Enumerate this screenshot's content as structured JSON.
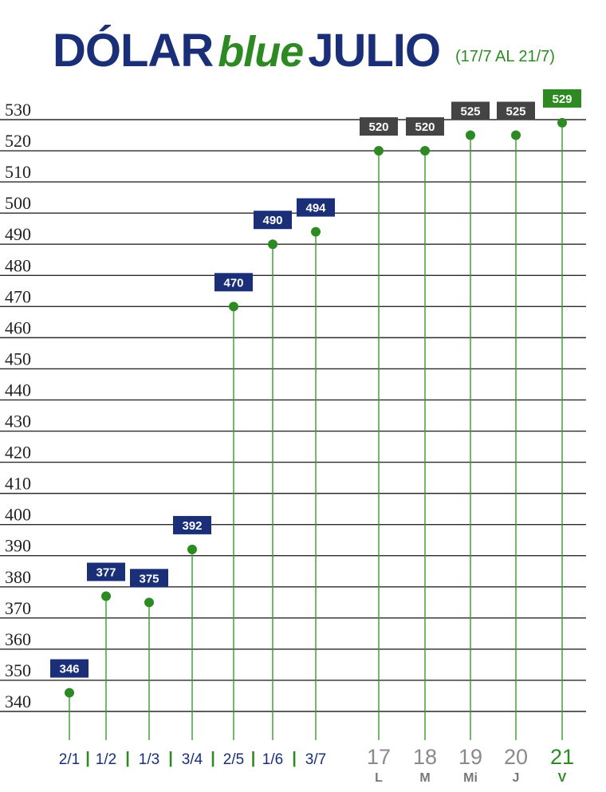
{
  "title": {
    "part1": "DÓLAR",
    "part2": "blue",
    "part3": "JULIO"
  },
  "subtitle": "(17/7 AL 21/7)",
  "chart_data": {
    "type": "line",
    "ylim": [
      340,
      530
    ],
    "yticks": [
      530,
      520,
      510,
      500,
      490,
      480,
      470,
      460,
      450,
      440,
      430,
      420,
      410,
      400,
      390,
      380,
      370,
      360,
      350,
      340
    ],
    "grid": true,
    "points": [
      {
        "x": "2/1",
        "value": 346,
        "label": "346",
        "style": "blue"
      },
      {
        "x": "1/2",
        "value": 377,
        "label": "377",
        "style": "blue"
      },
      {
        "x": "1/3",
        "value": 375,
        "label": "375",
        "style": "blue"
      },
      {
        "x": "3/4",
        "value": 392,
        "label": "392",
        "style": "blue"
      },
      {
        "x": "2/5",
        "value": 470,
        "label": "470",
        "style": "blue"
      },
      {
        "x": "1/6",
        "value": 490,
        "label": "490",
        "style": "blue"
      },
      {
        "x": "3/7",
        "value": 494,
        "label": "494",
        "style": "blue"
      },
      {
        "x": "17",
        "weekday": "L",
        "value": 520,
        "label": "520",
        "style": "gray"
      },
      {
        "x": "18",
        "weekday": "M",
        "value": 520,
        "label": "520",
        "style": "gray"
      },
      {
        "x": "19",
        "weekday": "Mi",
        "value": 525,
        "label": "525",
        "style": "gray"
      },
      {
        "x": "20",
        "weekday": "J",
        "value": 525,
        "label": "525",
        "style": "gray"
      },
      {
        "x": "21",
        "weekday": "V",
        "value": 529,
        "label": "529",
        "style": "green"
      }
    ],
    "separator": "|"
  }
}
